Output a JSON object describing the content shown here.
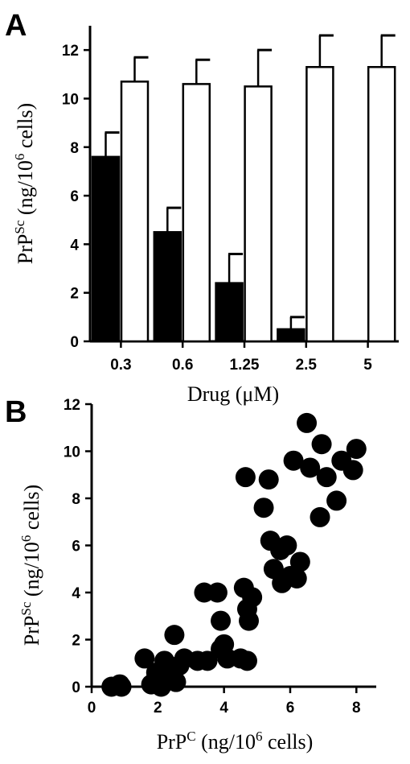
{
  "chart_data": [
    {
      "type": "bar",
      "panel_label": "A",
      "categories": [
        "0.3",
        "0.6",
        "1.25",
        "2.5",
        "5"
      ],
      "series": [
        {
          "fill": "#000000",
          "values": [
            7.6,
            4.5,
            2.4,
            0.5,
            0
          ],
          "error": [
            1.0,
            1.0,
            1.2,
            0.5,
            0
          ]
        },
        {
          "fill": "#ffffff",
          "values": [
            10.7,
            10.6,
            10.5,
            11.3,
            11.3
          ],
          "error": [
            1.0,
            1.0,
            1.5,
            1.3,
            1.3
          ]
        }
      ],
      "ylim": [
        0,
        13
      ],
      "yticks": [
        0,
        2,
        4,
        6,
        8,
        10,
        12
      ],
      "xlabel": "Drug (μM)",
      "ylabel": {
        "base": "PrP",
        "sup": "Sc",
        "rest": " (ng/10",
        "sup2": "6",
        "end": " cells)"
      }
    },
    {
      "type": "scatter",
      "panel_label": "B",
      "xlim": [
        0,
        8.6
      ],
      "ylim": [
        0,
        12
      ],
      "xticks": [
        0,
        2,
        4,
        6,
        8
      ],
      "yticks": [
        0,
        2,
        4,
        6,
        8,
        10,
        12
      ],
      "xlabel": {
        "base": "PrP",
        "sup": "C",
        "rest": " (ng/10",
        "sup2": "6",
        "end": " cells)"
      },
      "ylabel": {
        "base": "PrP",
        "sup": "Sc",
        "rest": " (ng/10",
        "sup2": "6",
        "end": " cells)"
      },
      "points": [
        {
          "x": 0.6,
          "y": 0.0
        },
        {
          "x": 0.85,
          "y": 0.1
        },
        {
          "x": 0.9,
          "y": 0.0
        },
        {
          "x": 1.6,
          "y": 1.2
        },
        {
          "x": 1.8,
          "y": 0.1
        },
        {
          "x": 1.95,
          "y": 0.6
        },
        {
          "x": 2.1,
          "y": 0.0
        },
        {
          "x": 2.2,
          "y": 1.1
        },
        {
          "x": 2.3,
          "y": 0.5
        },
        {
          "x": 2.5,
          "y": 2.2
        },
        {
          "x": 2.55,
          "y": 0.2
        },
        {
          "x": 2.65,
          "y": 0.9
        },
        {
          "x": 2.8,
          "y": 1.2
        },
        {
          "x": 3.2,
          "y": 1.1
        },
        {
          "x": 3.4,
          "y": 4.0
        },
        {
          "x": 3.5,
          "y": 1.1
        },
        {
          "x": 3.8,
          "y": 4.0
        },
        {
          "x": 3.9,
          "y": 1.6
        },
        {
          "x": 3.9,
          "y": 2.8
        },
        {
          "x": 4.0,
          "y": 1.8
        },
        {
          "x": 4.1,
          "y": 1.2
        },
        {
          "x": 4.5,
          "y": 1.2
        },
        {
          "x": 4.6,
          "y": 4.2
        },
        {
          "x": 4.65,
          "y": 8.9
        },
        {
          "x": 4.7,
          "y": 3.3
        },
        {
          "x": 4.75,
          "y": 2.8
        },
        {
          "x": 4.85,
          "y": 3.8
        },
        {
          "x": 4.7,
          "y": 1.1
        },
        {
          "x": 5.2,
          "y": 7.6
        },
        {
          "x": 5.35,
          "y": 8.8
        },
        {
          "x": 5.4,
          "y": 6.2
        },
        {
          "x": 5.5,
          "y": 5.0
        },
        {
          "x": 5.7,
          "y": 5.8
        },
        {
          "x": 5.75,
          "y": 4.4
        },
        {
          "x": 5.9,
          "y": 6.0
        },
        {
          "x": 6.0,
          "y": 4.7
        },
        {
          "x": 6.1,
          "y": 9.6
        },
        {
          "x": 6.2,
          "y": 4.6
        },
        {
          "x": 6.3,
          "y": 5.3
        },
        {
          "x": 6.5,
          "y": 11.2
        },
        {
          "x": 6.6,
          "y": 9.3
        },
        {
          "x": 6.9,
          "y": 7.2
        },
        {
          "x": 6.95,
          "y": 10.3
        },
        {
          "x": 7.1,
          "y": 8.9
        },
        {
          "x": 7.4,
          "y": 7.9
        },
        {
          "x": 7.55,
          "y": 9.6
        },
        {
          "x": 7.9,
          "y": 9.2
        },
        {
          "x": 8.0,
          "y": 10.1
        }
      ]
    }
  ]
}
